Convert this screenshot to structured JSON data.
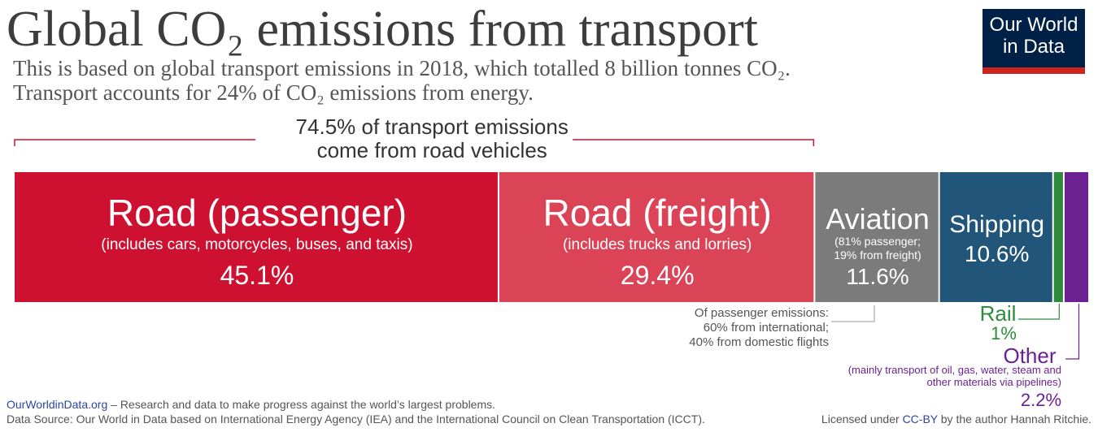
{
  "header": {
    "title": "Global CO₂ emissions from transport",
    "subtitle_line1": "This is based on global transport emissions in 2018, which totalled 8 billion tonnes CO₂.",
    "subtitle_line2": "Transport accounts for 24% of CO₂ emissions from energy."
  },
  "logo": {
    "line1": "Our World",
    "line2": "in Data"
  },
  "chart_data": {
    "type": "bar",
    "stacked_to_100": true,
    "categories": [
      "Road (passenger)",
      "Road (freight)",
      "Aviation",
      "Shipping",
      "Rail",
      "Other"
    ],
    "values": [
      45.1,
      29.4,
      11.6,
      10.6,
      1,
      2.2
    ],
    "value_labels": [
      "45.1%",
      "29.4%",
      "11.6%",
      "10.6%",
      "1%",
      "2.2%"
    ],
    "descriptions": [
      "(includes cars, motorcycles, buses, and taxis)",
      "(includes trucks and lorries)",
      "(81% passenger; 19% from freight)",
      "",
      "",
      "(mainly transport of oil, gas, water, steam and other materials via pipelines)"
    ],
    "colors": [
      "#ce1131",
      "#db4457",
      "#7b7b7b",
      "#215579",
      "#2e8b3e",
      "#6b2191"
    ],
    "label_colors": [
      "#ffffff",
      "#ffffff",
      "#ffffff",
      "#ffffff",
      "#2e8b3e",
      "#6b2191"
    ],
    "bracket_annotation": {
      "line1": "74.5% of transport emissions",
      "line2": "come from road vehicles",
      "covers": [
        "Road (passenger)",
        "Road (freight)"
      ]
    },
    "aviation_note": [
      "Of passenger emissions:",
      "60% from international;",
      "40% from domestic flights"
    ]
  },
  "footer": {
    "site": "OurWorldinData.org",
    "tagline": " – Research and data to make progress against the world’s largest problems.",
    "source": "Data Source: Our World in Data based on International Energy Agency (IEA) and the International Council on Clean Transportation (ICCT).",
    "license_prefix": "Licensed under ",
    "license_link": "CC-BY",
    "license_suffix": " by the author Hannah Ritchie."
  }
}
